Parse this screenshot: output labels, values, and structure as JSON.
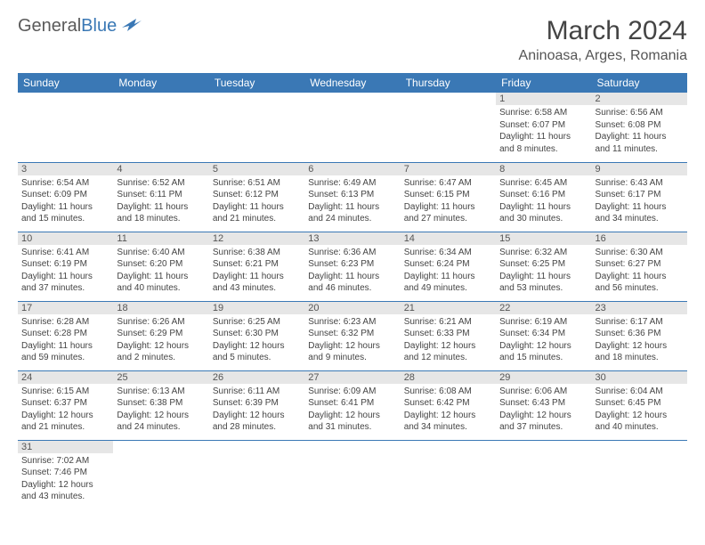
{
  "logo": {
    "text1": "General",
    "text2": "Blue"
  },
  "title": "March 2024",
  "location": "Aninoasa, Arges, Romania",
  "colors": {
    "header_bg": "#3a78b5",
    "header_fg": "#ffffff",
    "daynum_bg": "#e6e6e6",
    "border": "#3a78b5",
    "logo_gray": "#5a5a5a",
    "logo_blue": "#3a78b5"
  },
  "day_headers": [
    "Sunday",
    "Monday",
    "Tuesday",
    "Wednesday",
    "Thursday",
    "Friday",
    "Saturday"
  ],
  "weeks": [
    [
      null,
      null,
      null,
      null,
      null,
      {
        "n": "1",
        "sr": "Sunrise: 6:58 AM",
        "ss": "Sunset: 6:07 PM",
        "d1": "Daylight: 11 hours",
        "d2": "and 8 minutes."
      },
      {
        "n": "2",
        "sr": "Sunrise: 6:56 AM",
        "ss": "Sunset: 6:08 PM",
        "d1": "Daylight: 11 hours",
        "d2": "and 11 minutes."
      }
    ],
    [
      {
        "n": "3",
        "sr": "Sunrise: 6:54 AM",
        "ss": "Sunset: 6:09 PM",
        "d1": "Daylight: 11 hours",
        "d2": "and 15 minutes."
      },
      {
        "n": "4",
        "sr": "Sunrise: 6:52 AM",
        "ss": "Sunset: 6:11 PM",
        "d1": "Daylight: 11 hours",
        "d2": "and 18 minutes."
      },
      {
        "n": "5",
        "sr": "Sunrise: 6:51 AM",
        "ss": "Sunset: 6:12 PM",
        "d1": "Daylight: 11 hours",
        "d2": "and 21 minutes."
      },
      {
        "n": "6",
        "sr": "Sunrise: 6:49 AM",
        "ss": "Sunset: 6:13 PM",
        "d1": "Daylight: 11 hours",
        "d2": "and 24 minutes."
      },
      {
        "n": "7",
        "sr": "Sunrise: 6:47 AM",
        "ss": "Sunset: 6:15 PM",
        "d1": "Daylight: 11 hours",
        "d2": "and 27 minutes."
      },
      {
        "n": "8",
        "sr": "Sunrise: 6:45 AM",
        "ss": "Sunset: 6:16 PM",
        "d1": "Daylight: 11 hours",
        "d2": "and 30 minutes."
      },
      {
        "n": "9",
        "sr": "Sunrise: 6:43 AM",
        "ss": "Sunset: 6:17 PM",
        "d1": "Daylight: 11 hours",
        "d2": "and 34 minutes."
      }
    ],
    [
      {
        "n": "10",
        "sr": "Sunrise: 6:41 AM",
        "ss": "Sunset: 6:19 PM",
        "d1": "Daylight: 11 hours",
        "d2": "and 37 minutes."
      },
      {
        "n": "11",
        "sr": "Sunrise: 6:40 AM",
        "ss": "Sunset: 6:20 PM",
        "d1": "Daylight: 11 hours",
        "d2": "and 40 minutes."
      },
      {
        "n": "12",
        "sr": "Sunrise: 6:38 AM",
        "ss": "Sunset: 6:21 PM",
        "d1": "Daylight: 11 hours",
        "d2": "and 43 minutes."
      },
      {
        "n": "13",
        "sr": "Sunrise: 6:36 AM",
        "ss": "Sunset: 6:23 PM",
        "d1": "Daylight: 11 hours",
        "d2": "and 46 minutes."
      },
      {
        "n": "14",
        "sr": "Sunrise: 6:34 AM",
        "ss": "Sunset: 6:24 PM",
        "d1": "Daylight: 11 hours",
        "d2": "and 49 minutes."
      },
      {
        "n": "15",
        "sr": "Sunrise: 6:32 AM",
        "ss": "Sunset: 6:25 PM",
        "d1": "Daylight: 11 hours",
        "d2": "and 53 minutes."
      },
      {
        "n": "16",
        "sr": "Sunrise: 6:30 AM",
        "ss": "Sunset: 6:27 PM",
        "d1": "Daylight: 11 hours",
        "d2": "and 56 minutes."
      }
    ],
    [
      {
        "n": "17",
        "sr": "Sunrise: 6:28 AM",
        "ss": "Sunset: 6:28 PM",
        "d1": "Daylight: 11 hours",
        "d2": "and 59 minutes."
      },
      {
        "n": "18",
        "sr": "Sunrise: 6:26 AM",
        "ss": "Sunset: 6:29 PM",
        "d1": "Daylight: 12 hours",
        "d2": "and 2 minutes."
      },
      {
        "n": "19",
        "sr": "Sunrise: 6:25 AM",
        "ss": "Sunset: 6:30 PM",
        "d1": "Daylight: 12 hours",
        "d2": "and 5 minutes."
      },
      {
        "n": "20",
        "sr": "Sunrise: 6:23 AM",
        "ss": "Sunset: 6:32 PM",
        "d1": "Daylight: 12 hours",
        "d2": "and 9 minutes."
      },
      {
        "n": "21",
        "sr": "Sunrise: 6:21 AM",
        "ss": "Sunset: 6:33 PM",
        "d1": "Daylight: 12 hours",
        "d2": "and 12 minutes."
      },
      {
        "n": "22",
        "sr": "Sunrise: 6:19 AM",
        "ss": "Sunset: 6:34 PM",
        "d1": "Daylight: 12 hours",
        "d2": "and 15 minutes."
      },
      {
        "n": "23",
        "sr": "Sunrise: 6:17 AM",
        "ss": "Sunset: 6:36 PM",
        "d1": "Daylight: 12 hours",
        "d2": "and 18 minutes."
      }
    ],
    [
      {
        "n": "24",
        "sr": "Sunrise: 6:15 AM",
        "ss": "Sunset: 6:37 PM",
        "d1": "Daylight: 12 hours",
        "d2": "and 21 minutes."
      },
      {
        "n": "25",
        "sr": "Sunrise: 6:13 AM",
        "ss": "Sunset: 6:38 PM",
        "d1": "Daylight: 12 hours",
        "d2": "and 24 minutes."
      },
      {
        "n": "26",
        "sr": "Sunrise: 6:11 AM",
        "ss": "Sunset: 6:39 PM",
        "d1": "Daylight: 12 hours",
        "d2": "and 28 minutes."
      },
      {
        "n": "27",
        "sr": "Sunrise: 6:09 AM",
        "ss": "Sunset: 6:41 PM",
        "d1": "Daylight: 12 hours",
        "d2": "and 31 minutes."
      },
      {
        "n": "28",
        "sr": "Sunrise: 6:08 AM",
        "ss": "Sunset: 6:42 PM",
        "d1": "Daylight: 12 hours",
        "d2": "and 34 minutes."
      },
      {
        "n": "29",
        "sr": "Sunrise: 6:06 AM",
        "ss": "Sunset: 6:43 PM",
        "d1": "Daylight: 12 hours",
        "d2": "and 37 minutes."
      },
      {
        "n": "30",
        "sr": "Sunrise: 6:04 AM",
        "ss": "Sunset: 6:45 PM",
        "d1": "Daylight: 12 hours",
        "d2": "and 40 minutes."
      }
    ],
    [
      {
        "n": "31",
        "sr": "Sunrise: 7:02 AM",
        "ss": "Sunset: 7:46 PM",
        "d1": "Daylight: 12 hours",
        "d2": "and 43 minutes."
      },
      null,
      null,
      null,
      null,
      null,
      null
    ]
  ]
}
